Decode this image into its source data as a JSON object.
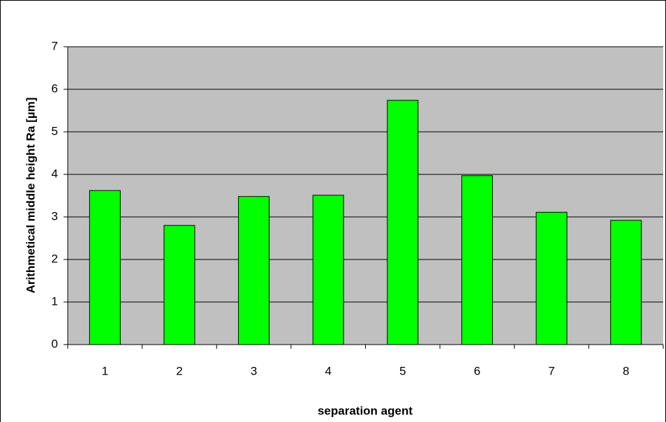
{
  "chart_data": {
    "type": "bar",
    "y_label": "Arithmetical middle height  Ra [µm]",
    "x_label": "separation agent",
    "categories": [
      "1",
      "2",
      "3",
      "4",
      "5",
      "6",
      "7",
      "8"
    ],
    "values": [
      3.62,
      2.8,
      3.48,
      3.51,
      5.74,
      3.97,
      3.11,
      2.92
    ],
    "color": "#00ff00",
    "ylim": [
      0,
      7
    ],
    "yticks": [
      0,
      1,
      2,
      3,
      4,
      5,
      6,
      7
    ],
    "grid": true
  }
}
